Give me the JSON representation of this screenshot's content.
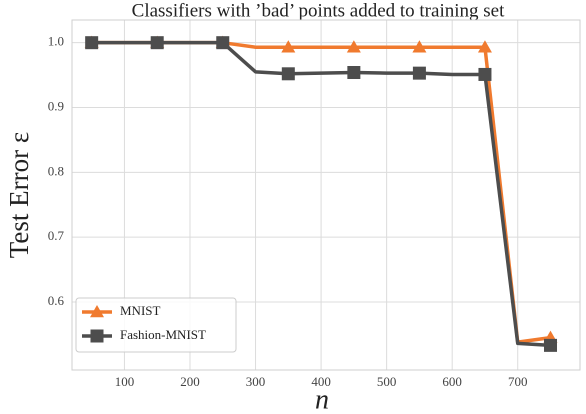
{
  "chart_data": {
    "type": "line",
    "title": "Classifiers with ’bad’ points added to training set",
    "xlabel": "n",
    "ylabel": "Test Error ε",
    "x": [
      50,
      100,
      150,
      200,
      250,
      300,
      350,
      400,
      450,
      500,
      550,
      600,
      650,
      700,
      750
    ],
    "series": [
      {
        "name": "MNIST",
        "color": "#f07a2e",
        "marker": "triangle",
        "values": [
          1.0,
          1.0,
          1.0,
          1.0,
          1.0,
          0.993,
          0.993,
          0.993,
          0.993,
          0.993,
          0.993,
          0.993,
          0.993,
          0.538,
          0.545
        ]
      },
      {
        "name": "Fashion-MNIST",
        "color": "#4d4d4d",
        "marker": "square",
        "values": [
          1.0,
          1.0,
          1.0,
          1.0,
          1.0,
          0.955,
          0.952,
          0.953,
          0.954,
          0.953,
          0.953,
          0.951,
          0.951,
          0.536,
          0.533
        ]
      }
    ],
    "markevery": 2,
    "xlim": [
      20,
      795
    ],
    "ylim": [
      0.495,
      1.035
    ],
    "xticks": [
      100,
      200,
      300,
      400,
      500,
      600,
      700
    ],
    "yticks": [
      {
        "value": 1,
        "label": "1.0"
      },
      0.9,
      0.8,
      0.7,
      0.6
    ],
    "grid": true,
    "legend": "lower left"
  }
}
